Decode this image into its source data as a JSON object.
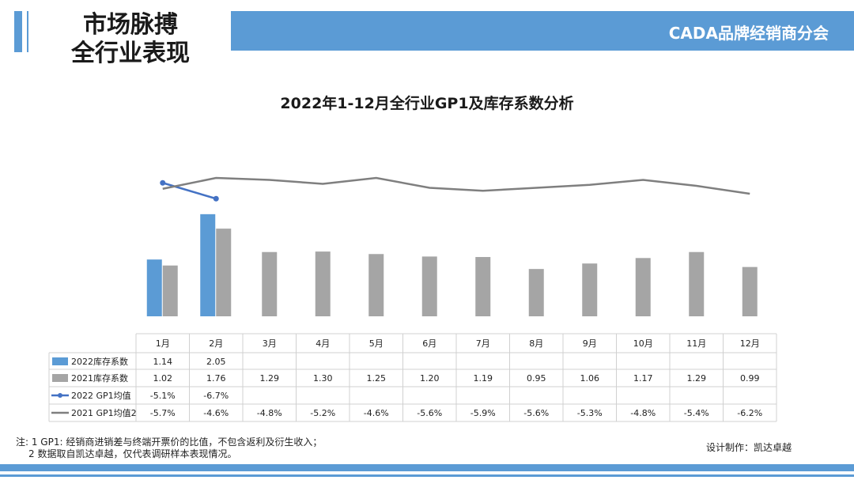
{
  "header": {
    "title_line1": "市场脉搏",
    "title_line2": "全行业表现",
    "org_name": "CADA品牌经销商分会"
  },
  "chart_data": {
    "type": "bar",
    "title": "2022年1-12月全行业GP1及库存系数分析",
    "categories": [
      "1月",
      "2月",
      "3月",
      "4月",
      "5月",
      "6月",
      "7月",
      "8月",
      "9月",
      "10月",
      "11月",
      "12月"
    ],
    "series": [
      {
        "name": "2022库存系数",
        "kind": "bar",
        "color": "#5b9bd5",
        "values": [
          1.14,
          2.05,
          null,
          null,
          null,
          null,
          null,
          null,
          null,
          null,
          null,
          null
        ],
        "labels": [
          "1.14",
          "2.05",
          "",
          "",
          "",
          "",
          "",
          "",
          "",
          "",
          "",
          ""
        ]
      },
      {
        "name": "2021库存系数",
        "kind": "bar",
        "color": "#a5a5a5",
        "values": [
          1.02,
          1.76,
          1.29,
          1.3,
          1.25,
          1.2,
          1.19,
          0.95,
          1.06,
          1.17,
          1.29,
          0.99
        ],
        "labels": [
          "1.02",
          "1.76",
          "1.29",
          "1.30",
          "1.25",
          "1.20",
          "1.19",
          "0.95",
          "1.06",
          "1.17",
          "1.29",
          "0.99"
        ]
      },
      {
        "name": "2022 GP1均值",
        "kind": "line",
        "marker": true,
        "color": "#4472c4",
        "values": [
          -5.1,
          -6.7,
          null,
          null,
          null,
          null,
          null,
          null,
          null,
          null,
          null,
          null
        ],
        "labels": [
          "-5.1%",
          "-6.7%",
          "",
          "",
          "",
          "",
          "",
          "",
          "",
          "",
          "",
          ""
        ]
      },
      {
        "name": "2021 GP1均值2",
        "kind": "line",
        "marker": false,
        "color": "#7f7f7f",
        "values": [
          -5.7,
          -4.6,
          -4.8,
          -5.2,
          -4.6,
          -5.6,
          -5.9,
          -5.6,
          -5.3,
          -4.8,
          -5.4,
          -6.2
        ],
        "labels": [
          "-5.7%",
          "-4.6%",
          "-4.8%",
          "-5.2%",
          "-4.6%",
          "-5.6%",
          "-5.9%",
          "-5.6%",
          "-5.3%",
          "-4.8%",
          "-5.4%",
          "-6.2%"
        ]
      }
    ]
  },
  "footnote": {
    "line1": "注: 1  GP1: 经销商进销差与终端开票价的比值，不包含返利及衍生收入；",
    "line2": "2  数据取自凯达卓越，仅代表调研样本表现情况。"
  },
  "credit": "设计制作：凯达卓越"
}
